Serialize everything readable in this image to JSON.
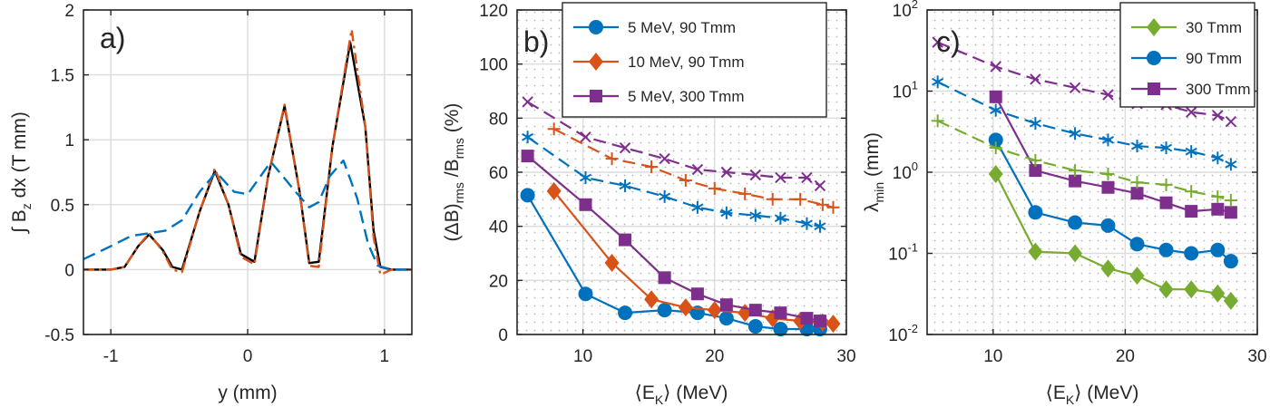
{
  "colors": {
    "blue": "#0072BD",
    "orange": "#D95319",
    "purple": "#7E2F8E",
    "green": "#77AC30",
    "black": "#000000"
  },
  "chart_data": [
    {
      "type": "line",
      "panel_label": "a)",
      "xlabel": "y (mm)",
      "ylabel": "∫ B_z dx (T mm)",
      "ylabel_parts": {
        "prefix": "∫ B",
        "sub": "z",
        "suffix": " dx (T mm)"
      },
      "xlim": [
        -1.2,
        1.2
      ],
      "ylim": [
        -0.5,
        2
      ],
      "xticks": [
        -1,
        0,
        1
      ],
      "xtick_labels": [
        "-1",
        "0",
        "1"
      ],
      "yticks": [
        -0.5,
        0,
        0.5,
        1,
        1.5,
        2
      ],
      "ytick_labels": [
        "-0.5",
        "0",
        "0.5",
        "1",
        "1.5",
        "2"
      ],
      "grid": true,
      "series": [
        {
          "style": "solid",
          "color": "black",
          "x": [
            -1.2,
            -1.0,
            -0.9,
            -0.8,
            -0.72,
            -0.62,
            -0.55,
            -0.48,
            -0.35,
            -0.24,
            -0.14,
            -0.05,
            0.05,
            0.15,
            0.27,
            0.38,
            0.45,
            0.52,
            0.62,
            0.75,
            0.86,
            0.92,
            0.97,
            1.05,
            1.2
          ],
          "y": [
            0,
            0,
            0.02,
            0.18,
            0.27,
            0.15,
            0.02,
            0,
            0.45,
            0.76,
            0.5,
            0.12,
            0.06,
            0.72,
            1.26,
            0.6,
            0.05,
            0.06,
            0.95,
            1.75,
            1.1,
            0.3,
            0.02,
            0,
            0
          ]
        },
        {
          "style": "dashdot",
          "color": "orange",
          "x": [
            -1.2,
            -1.0,
            -0.9,
            -0.8,
            -0.72,
            -0.62,
            -0.55,
            -0.48,
            -0.35,
            -0.24,
            -0.14,
            -0.05,
            0.05,
            0.15,
            0.27,
            0.38,
            0.45,
            0.52,
            0.62,
            0.76,
            0.86,
            0.92,
            0.97,
            1.05,
            1.2
          ],
          "y": [
            0,
            0,
            0.02,
            0.18,
            0.28,
            0.14,
            0,
            -0.02,
            0.45,
            0.78,
            0.5,
            0.1,
            0.04,
            0.72,
            1.27,
            0.6,
            0.03,
            0.02,
            0.95,
            1.85,
            1.1,
            0.25,
            -0.04,
            0,
            0
          ]
        },
        {
          "style": "dashed",
          "color": "blue",
          "x": [
            -1.2,
            -1.0,
            -0.85,
            -0.72,
            -0.6,
            -0.48,
            -0.35,
            -0.23,
            -0.1,
            0.0,
            0.17,
            0.35,
            0.45,
            0.52,
            0.6,
            0.7,
            0.8,
            0.88,
            0.95,
            1.05,
            1.2
          ],
          "y": [
            0.08,
            0.18,
            0.26,
            0.28,
            0.3,
            0.38,
            0.6,
            0.75,
            0.6,
            0.58,
            0.83,
            0.6,
            0.48,
            0.52,
            0.72,
            0.84,
            0.55,
            0.2,
            0.03,
            0,
            0
          ]
        }
      ]
    },
    {
      "type": "line",
      "panel_label": "b)",
      "xlabel": "⟨E_K⟩ (MeV)",
      "xlabel_parts": {
        "prefix": "⟨E",
        "sub": "K",
        "suffix": "⟩ (MeV)"
      },
      "ylabel": "(ΔB)_rms /B_rms (%)",
      "ylabel_parts": {
        "a": "(ΔB)",
        "sub1": "rms",
        "b": " /B",
        "sub2": "rms",
        "c": " (%)"
      },
      "xlim": [
        5,
        30
      ],
      "ylim": [
        0,
        120
      ],
      "xticks": [
        10,
        20,
        30
      ],
      "xtick_labels": [
        "10",
        "20",
        "30"
      ],
      "yticks": [
        0,
        20,
        40,
        60,
        80,
        100,
        120
      ],
      "ytick_labels": [
        "0",
        "20",
        "40",
        "60",
        "80",
        "100",
        "120"
      ],
      "grid": true,
      "legend": {
        "position": "top-right",
        "entries": [
          "5 MeV, 90 Tmm",
          "10 MeV, 90 Tmm",
          "5 MeV, 300 Tmm"
        ]
      },
      "series": [
        {
          "name": "5 MeV, 90 Tmm",
          "color": "blue",
          "marker": "circle",
          "style": "solid",
          "x": [
            5.8,
            10.2,
            13.2,
            16.2,
            18.7,
            20.9,
            23.1,
            25.0,
            27.0,
            28.0
          ],
          "y": [
            51.5,
            15,
            8,
            9,
            8,
            6,
            3,
            2,
            2,
            2
          ]
        },
        {
          "name": "10 MeV, 90 Tmm",
          "color": "orange",
          "marker": "diamond",
          "style": "solid",
          "x": [
            7.8,
            12.2,
            15.2,
            17.8,
            20.0,
            22.3,
            24.4,
            26.5,
            28.2,
            29.0
          ],
          "y": [
            53,
            26.5,
            13,
            10,
            9,
            8,
            6,
            5,
            4.5,
            4
          ]
        },
        {
          "name": "5 MeV, 300 Tmm",
          "color": "purple",
          "marker": "square",
          "style": "solid",
          "x": [
            5.8,
            10.2,
            13.2,
            16.2,
            18.7,
            20.9,
            23.1,
            25.0,
            27.0,
            28.0
          ],
          "y": [
            66,
            48,
            35,
            21,
            15,
            11,
            9,
            8,
            6,
            5
          ]
        },
        {
          "color": "purple",
          "marker": "x",
          "style": "dashed",
          "x": [
            5.8,
            10.2,
            13.2,
            16.2,
            18.7,
            20.9,
            23.1,
            25.0,
            27.0,
            28.0
          ],
          "y": [
            86,
            73,
            69,
            65,
            61,
            60,
            59,
            58,
            58,
            55
          ]
        },
        {
          "color": "orange",
          "marker": "plus",
          "style": "dashed",
          "x": [
            7.8,
            12.2,
            15.2,
            17.8,
            20.0,
            22.3,
            24.4,
            26.5,
            28.2,
            29.0
          ],
          "y": [
            76,
            65,
            62,
            57,
            54,
            52,
            50,
            50,
            48,
            47
          ]
        },
        {
          "color": "blue",
          "marker": "asterisk",
          "style": "dashed",
          "x": [
            5.8,
            10.2,
            13.2,
            16.2,
            18.7,
            20.9,
            23.1,
            25.0,
            27.0,
            28.0
          ],
          "y": [
            73,
            58,
            55,
            51,
            47,
            45,
            44,
            43,
            41,
            40
          ]
        }
      ]
    },
    {
      "type": "line",
      "panel_label": "c)",
      "xlabel": "⟨E_K⟩ (MeV)",
      "xlabel_parts": {
        "prefix": "⟨E",
        "sub": "K",
        "suffix": "⟩ (MeV)"
      },
      "ylabel": "λ_min (mm)",
      "ylabel_parts": {
        "prefix": "λ",
        "sub": "min",
        "suffix": " (mm)"
      },
      "xlim": [
        5,
        30
      ],
      "ylim": [
        0.01,
        100
      ],
      "yscale": "log",
      "xticks": [
        10,
        20,
        30
      ],
      "xtick_labels": [
        "10",
        "20",
        "30"
      ],
      "yticks": [
        0.01,
        0.1,
        1,
        10,
        100
      ],
      "ytick_labels": [
        {
          "base": "10",
          "exp": "-2"
        },
        {
          "base": "10",
          "exp": "-1"
        },
        {
          "base": "10",
          "exp": "0"
        },
        {
          "base": "10",
          "exp": "1"
        },
        {
          "base": "10",
          "exp": "2"
        }
      ],
      "grid": true,
      "legend": {
        "position": "top-right",
        "entries": [
          "30 Tmm",
          "90 Tmm",
          "300 Tmm"
        ]
      },
      "series": [
        {
          "name": "30 Tmm",
          "color": "green",
          "marker": "diamond",
          "style": "solid",
          "x": [
            10.2,
            13.2,
            16.2,
            18.7,
            20.9,
            23.1,
            25.0,
            27.0,
            28.0
          ],
          "y": [
            0.95,
            0.105,
            0.1,
            0.065,
            0.053,
            0.036,
            0.036,
            0.032,
            0.026
          ]
        },
        {
          "name": "90 Tmm",
          "color": "blue",
          "marker": "circle",
          "style": "solid",
          "x": [
            10.2,
            13.2,
            16.2,
            18.7,
            20.9,
            23.1,
            25.0,
            27.0,
            28.0
          ],
          "y": [
            2.5,
            0.32,
            0.24,
            0.22,
            0.13,
            0.11,
            0.1,
            0.11,
            0.08
          ]
        },
        {
          "name": "300 Tmm",
          "color": "purple",
          "marker": "square",
          "style": "solid",
          "x": [
            10.2,
            13.2,
            16.2,
            18.7,
            20.9,
            23.1,
            25.0,
            27.0,
            28.0
          ],
          "y": [
            8.5,
            1.05,
            0.78,
            0.65,
            0.55,
            0.42,
            0.33,
            0.35,
            0.32
          ]
        },
        {
          "color": "purple",
          "marker": "x",
          "style": "dashed",
          "x": [
            5.8,
            10.2,
            13.2,
            16.2,
            18.7,
            20.9,
            23.1,
            25.0,
            27.0,
            28.0
          ],
          "y": [
            40,
            20,
            14,
            11,
            9,
            7,
            6.8,
            5.5,
            5,
            4.2
          ]
        },
        {
          "color": "blue",
          "marker": "asterisk",
          "style": "dashed",
          "x": [
            5.8,
            10.2,
            13.2,
            16.2,
            18.7,
            20.9,
            23.1,
            25.0,
            27.0,
            28.0
          ],
          "y": [
            13,
            5.8,
            4,
            3,
            2.5,
            2.1,
            2,
            1.8,
            1.5,
            1.25
          ]
        },
        {
          "color": "green",
          "marker": "plus",
          "style": "dashed",
          "x": [
            5.8,
            10.2,
            13.2,
            16.2,
            18.7,
            20.9,
            23.1,
            25.0,
            27.0,
            28.0
          ],
          "y": [
            4.3,
            2,
            1.4,
            1.05,
            0.95,
            0.75,
            0.7,
            0.58,
            0.5,
            0.45
          ]
        }
      ]
    }
  ]
}
